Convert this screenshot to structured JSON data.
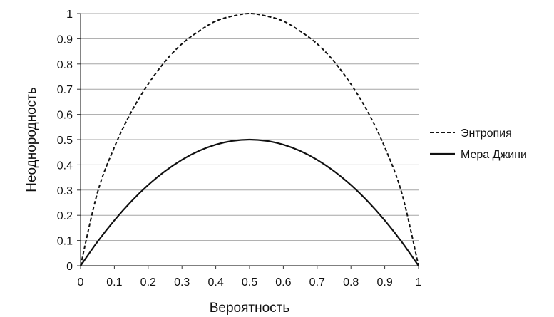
{
  "chart_data": {
    "type": "line",
    "title": "",
    "xlabel": "Вероятность",
    "ylabel": "Неоднородность",
    "xlim": [
      0,
      1
    ],
    "ylim": [
      0,
      1
    ],
    "grid": "horizontal",
    "legend_position": "right",
    "x_ticks": [
      "0",
      "0.1",
      "0.2",
      "0.3",
      "0.4",
      "0.5",
      "0.6",
      "0.7",
      "0.8",
      "0.9",
      "1"
    ],
    "y_ticks": [
      "0",
      "0.1",
      "0.2",
      "0.3",
      "0.4",
      "0.5",
      "0.6",
      "0.7",
      "0.8",
      "0.9",
      "1"
    ],
    "x": [
      0,
      0.05,
      0.1,
      0.15,
      0.2,
      0.25,
      0.3,
      0.35,
      0.4,
      0.45,
      0.5,
      0.55,
      0.6,
      0.65,
      0.7,
      0.75,
      0.8,
      0.85,
      0.9,
      0.95,
      1
    ],
    "series": [
      {
        "name": "Энтропия",
        "style": "dashed",
        "color": "#111111",
        "values": [
          0,
          0.29,
          0.47,
          0.61,
          0.72,
          0.81,
          0.88,
          0.93,
          0.97,
          0.99,
          1.0,
          0.99,
          0.97,
          0.93,
          0.88,
          0.81,
          0.72,
          0.61,
          0.47,
          0.29,
          0
        ]
      },
      {
        "name": "Мера Джини",
        "style": "solid",
        "color": "#111111",
        "values": [
          0,
          0.095,
          0.18,
          0.255,
          0.32,
          0.375,
          0.42,
          0.455,
          0.48,
          0.495,
          0.5,
          0.495,
          0.48,
          0.455,
          0.42,
          0.375,
          0.32,
          0.255,
          0.18,
          0.095,
          0
        ]
      }
    ]
  }
}
